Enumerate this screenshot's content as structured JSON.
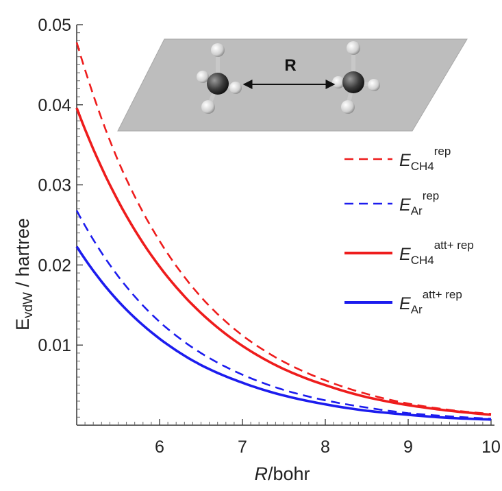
{
  "chart_data": {
    "type": "line",
    "xlabel": {
      "italic": "R",
      "rest": "/bohr"
    },
    "ylabel": {
      "main": "E",
      "sub": "vdW",
      "rest": " / hartree"
    },
    "xlim": [
      5.0,
      10.0
    ],
    "ylim": [
      0.0,
      0.05
    ],
    "x_ticks": [
      "6",
      "7",
      "8",
      "9",
      "10"
    ],
    "y_ticks": [
      "0.01",
      "0.02",
      "0.03",
      "0.04",
      "0.05"
    ],
    "x": [
      5.0,
      5.5,
      6.0,
      6.5,
      7.0,
      7.5,
      8.0,
      8.5,
      9.0,
      9.5,
      10.0
    ],
    "series": [
      {
        "base": "E",
        "sub": "CH4",
        "sup": "rep",
        "color": "#ee1c1c",
        "dash": true,
        "values": [
          0.0478,
          0.033,
          0.023,
          0.016,
          0.0112,
          0.0079,
          0.0056,
          0.0039,
          0.0027,
          0.0019,
          0.0014
        ]
      },
      {
        "base": "E",
        "sub": "Ar",
        "sup": "rep",
        "color": "#1c1cee",
        "dash": true,
        "values": [
          0.0268,
          0.0186,
          0.0129,
          0.009,
          0.0063,
          0.0044,
          0.0031,
          0.0022,
          0.0015,
          0.0011,
          0.0008
        ]
      },
      {
        "base": "E",
        "sub": "CH4",
        "sup": "att+ rep",
        "color": "#ee1c1c",
        "dash": false,
        "values": [
          0.0396,
          0.028,
          0.0198,
          0.014,
          0.0099,
          0.007,
          0.005,
          0.0035,
          0.0025,
          0.0018,
          0.0013
        ]
      },
      {
        "base": "E",
        "sub": "Ar",
        "sup": "att+ rep",
        "color": "#1c1cee",
        "dash": false,
        "values": [
          0.0223,
          0.0155,
          0.0108,
          0.0075,
          0.0053,
          0.0037,
          0.0026,
          0.0018,
          0.0013,
          0.0009,
          0.0007
        ]
      }
    ],
    "legend_position": "right",
    "grid": false,
    "inset": {
      "label": "R"
    }
  }
}
